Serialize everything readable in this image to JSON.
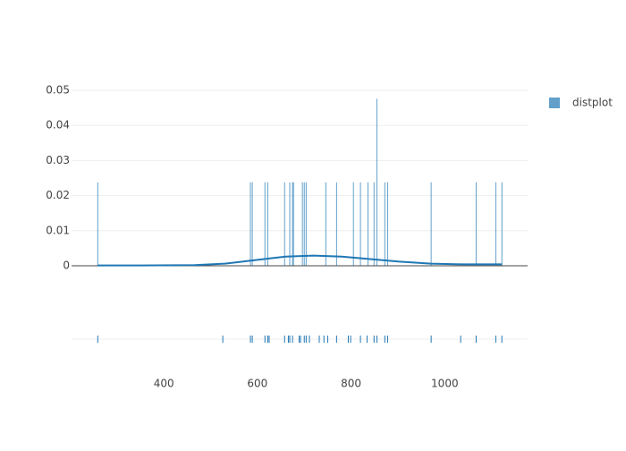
{
  "chart_data": {
    "type": "distplot",
    "series": [
      {
        "name": "distplot",
        "color": "#1f77b4",
        "hist_x": [
          259,
          585,
          589,
          616,
          622,
          658,
          669,
          675,
          677,
          696,
          700,
          704,
          746,
          769,
          805,
          820,
          836,
          849,
          855,
          872,
          878,
          971,
          1067,
          1109,
          1122
        ],
        "hist_values": [
          0.0238,
          0.0238,
          0.0238,
          0.0238,
          0.0238,
          0.0238,
          0.0238,
          0.0238,
          0.0238,
          0.0238,
          0.0238,
          0.0238,
          0.0238,
          0.0238,
          0.0238,
          0.0238,
          0.0238,
          0.0238,
          0.0476,
          0.0238,
          0.0238,
          0.0238,
          0.0238,
          0.0238,
          0.0238
        ],
        "kde_x": [
          259,
          350,
          466,
          530,
          600,
          660,
          720,
          780,
          840,
          900,
          970,
          1040,
          1122
        ],
        "kde_values": [
          0.0001,
          0.0001,
          0.0002,
          0.0006,
          0.0017,
          0.0026,
          0.0029,
          0.0026,
          0.0019,
          0.0012,
          0.0006,
          0.0004,
          0.0004
        ],
        "rug_x": [
          259,
          526,
          585,
          589,
          616,
          622,
          625,
          658,
          666,
          669,
          675,
          689,
          692,
          700,
          704,
          711,
          732,
          742,
          750,
          769,
          794,
          799,
          820,
          834,
          849,
          855,
          872,
          878,
          971,
          1034,
          1067,
          1109,
          1122
        ]
      }
    ],
    "xlim": [
      203,
      1177
    ],
    "xticks": [
      400,
      600,
      800,
      1000
    ],
    "ylim": [
      0,
      0.05
    ],
    "yticks": [
      0,
      0.01,
      0.02,
      0.03,
      0.04,
      0.05
    ],
    "grid": true,
    "legend": "top-right"
  }
}
